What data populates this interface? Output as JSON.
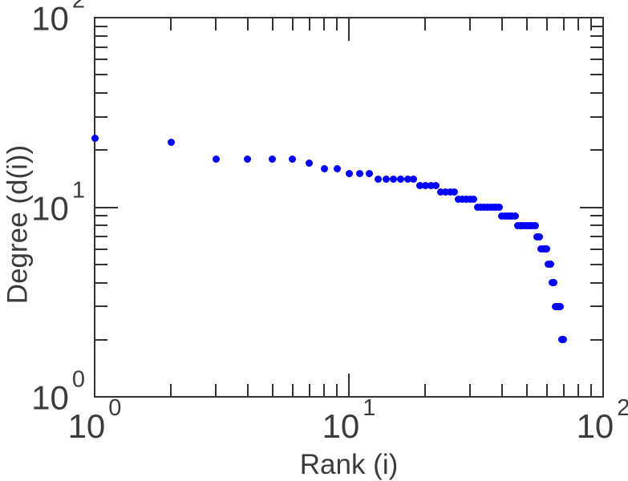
{
  "figure": {
    "background_color": "#ffffff",
    "axis_line_color": "#333333",
    "text_color": "#3b3b3b"
  },
  "chart_data": {
    "type": "scatter",
    "title": "",
    "xlabel": "Rank (i)",
    "ylabel": "Degree (d(i))",
    "x_scale": "log",
    "y_scale": "log",
    "xlim": [
      1,
      100
    ],
    "ylim": [
      1,
      100
    ],
    "grid": false,
    "legend": null,
    "marker_color": "#0000ff",
    "marker_diameter_px": 9,
    "x_tick_labels": [
      {
        "base": "10",
        "exp": "0",
        "value": 1
      },
      {
        "base": "10",
        "exp": "1",
        "value": 10
      },
      {
        "base": "10",
        "exp": "2",
        "value": 100
      }
    ],
    "y_tick_labels": [
      {
        "base": "10",
        "exp": "0",
        "value": 1
      },
      {
        "base": "10",
        "exp": "1",
        "value": 10
      },
      {
        "base": "10",
        "exp": "2",
        "value": 100
      }
    ],
    "minor_tick_values": [
      2,
      3,
      4,
      5,
      6,
      7,
      8,
      9,
      20,
      30,
      40,
      50,
      60,
      70,
      80,
      90
    ],
    "major_tick_values": [
      1,
      10,
      100
    ],
    "points": [
      [
        1,
        23
      ],
      [
        2,
        22
      ],
      [
        3,
        18
      ],
      [
        4,
        18
      ],
      [
        5,
        18
      ],
      [
        6,
        18
      ],
      [
        7,
        17
      ],
      [
        8,
        16
      ],
      [
        9,
        16
      ],
      [
        10,
        15
      ],
      [
        11,
        15
      ],
      [
        12,
        15
      ],
      [
        13,
        14
      ],
      [
        14,
        14
      ],
      [
        15,
        14
      ],
      [
        16,
        14
      ],
      [
        17,
        14
      ],
      [
        18,
        14
      ],
      [
        19,
        13
      ],
      [
        20,
        13
      ],
      [
        21,
        13
      ],
      [
        22,
        13
      ],
      [
        23,
        12
      ],
      [
        24,
        12
      ],
      [
        25,
        12
      ],
      [
        26,
        12
      ],
      [
        27,
        11
      ],
      [
        28,
        11
      ],
      [
        29,
        11
      ],
      [
        30,
        11
      ],
      [
        31,
        11
      ],
      [
        32,
        10
      ],
      [
        33,
        10
      ],
      [
        34,
        10
      ],
      [
        35,
        10
      ],
      [
        36,
        10
      ],
      [
        37,
        10
      ],
      [
        38,
        10
      ],
      [
        39,
        10
      ],
      [
        40,
        9
      ],
      [
        41,
        9
      ],
      [
        42,
        9
      ],
      [
        43,
        9
      ],
      [
        44,
        9
      ],
      [
        45,
        9
      ],
      [
        46,
        8
      ],
      [
        47,
        8
      ],
      [
        48,
        8
      ],
      [
        49,
        8
      ],
      [
        50,
        8
      ],
      [
        51,
        8
      ],
      [
        52,
        8
      ],
      [
        53,
        8
      ],
      [
        54,
        8
      ],
      [
        55,
        7
      ],
      [
        56,
        7
      ],
      [
        57,
        6
      ],
      [
        58,
        6
      ],
      [
        59,
        6
      ],
      [
        60,
        6
      ],
      [
        61,
        5
      ],
      [
        62,
        5
      ],
      [
        63,
        4
      ],
      [
        64,
        4
      ],
      [
        65,
        3
      ],
      [
        66,
        3
      ],
      [
        67,
        3
      ],
      [
        68,
        3
      ],
      [
        69,
        2
      ],
      [
        70,
        2
      ]
    ]
  }
}
